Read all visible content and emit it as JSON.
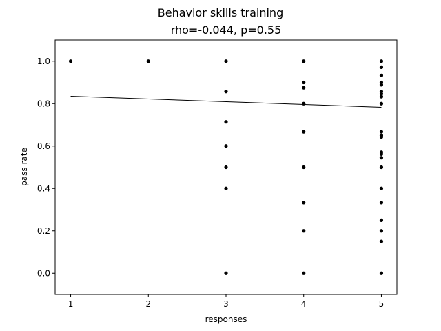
{
  "chart_data": {
    "type": "scatter",
    "title": "Behavior skills training",
    "subtitle": "rho=-0.044, p=0.55",
    "xlabel": "responses",
    "ylabel": "pass rate",
    "xlim": [
      0.8,
      5.2
    ],
    "ylim": [
      -0.1,
      1.1
    ],
    "xticks": [
      "1",
      "2",
      "3",
      "4",
      "5"
    ],
    "yticks": [
      "0.0",
      "0.2",
      "0.4",
      "0.6",
      "0.8",
      "1.0"
    ],
    "grid": false,
    "marker_color": "#000000",
    "points": [
      {
        "x": 1,
        "y": 1.0
      },
      {
        "x": 2,
        "y": 1.0
      },
      {
        "x": 3,
        "y": 1.0
      },
      {
        "x": 3,
        "y": 0.857
      },
      {
        "x": 3,
        "y": 0.714
      },
      {
        "x": 3,
        "y": 0.6
      },
      {
        "x": 3,
        "y": 0.5
      },
      {
        "x": 3,
        "y": 0.4
      },
      {
        "x": 3,
        "y": 0.0
      },
      {
        "x": 4,
        "y": 1.0
      },
      {
        "x": 4,
        "y": 0.9
      },
      {
        "x": 4,
        "y": 0.875
      },
      {
        "x": 4,
        "y": 0.8
      },
      {
        "x": 4,
        "y": 0.667
      },
      {
        "x": 4,
        "y": 0.5
      },
      {
        "x": 4,
        "y": 0.333
      },
      {
        "x": 4,
        "y": 0.2
      },
      {
        "x": 4,
        "y": 0.0
      },
      {
        "x": 5,
        "y": 1.0
      },
      {
        "x": 5,
        "y": 0.972
      },
      {
        "x": 5,
        "y": 0.933
      },
      {
        "x": 5,
        "y": 0.9
      },
      {
        "x": 5,
        "y": 0.889
      },
      {
        "x": 5,
        "y": 0.857
      },
      {
        "x": 5,
        "y": 0.846
      },
      {
        "x": 5,
        "y": 0.833
      },
      {
        "x": 5,
        "y": 0.8
      },
      {
        "x": 5,
        "y": 0.667
      },
      {
        "x": 5,
        "y": 0.65
      },
      {
        "x": 5,
        "y": 0.643
      },
      {
        "x": 5,
        "y": 0.571
      },
      {
        "x": 5,
        "y": 0.562
      },
      {
        "x": 5,
        "y": 0.545
      },
      {
        "x": 5,
        "y": 0.5
      },
      {
        "x": 5,
        "y": 0.4
      },
      {
        "x": 5,
        "y": 0.333
      },
      {
        "x": 5,
        "y": 0.25
      },
      {
        "x": 5,
        "y": 0.2
      },
      {
        "x": 5,
        "y": 0.15
      },
      {
        "x": 5,
        "y": 0.0
      }
    ],
    "trend_line": [
      {
        "x": 1,
        "y": 0.835
      },
      {
        "x": 5,
        "y": 0.783
      }
    ]
  }
}
